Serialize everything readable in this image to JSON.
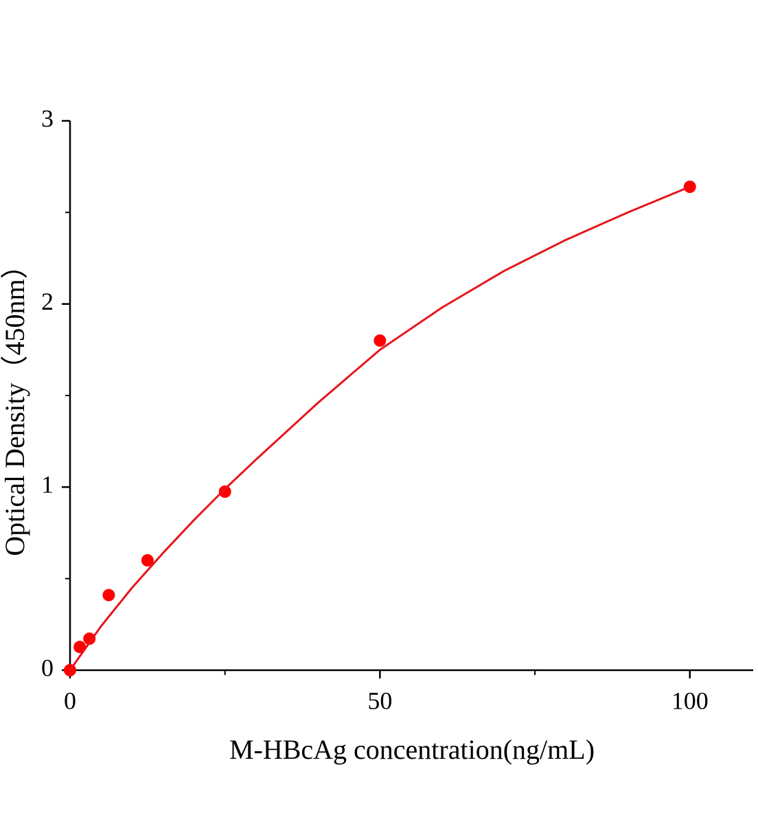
{
  "chart_data": {
    "type": "scatter",
    "xlabel": "M-HBcAg concentration(ng/mL)",
    "ylabel": "Optical Density（450nm）",
    "series": [
      {
        "type": "scatter",
        "color": "#ff0000",
        "x": [
          0,
          1.5625,
          3.125,
          6.25,
          12.5,
          25,
          50,
          100
        ],
        "values": [
          0,
          0.127,
          0.172,
          0.41,
          0.6,
          0.975,
          1.8,
          2.64
        ]
      },
      {
        "type": "line",
        "color": "#e8141c",
        "x": [
          0,
          5,
          10,
          15,
          20,
          25,
          30,
          40,
          50,
          60,
          70,
          80,
          90,
          100
        ],
        "values": [
          0,
          0.24,
          0.45,
          0.64,
          0.82,
          0.99,
          1.15,
          1.46,
          1.75,
          1.98,
          2.18,
          2.35,
          2.5,
          2.64
        ]
      }
    ],
    "xlim": [
      0,
      110
    ],
    "xticks": [
      0,
      50,
      100
    ],
    "xminorticks": [
      25,
      75
    ],
    "ylim": [
      0,
      3
    ],
    "yticks": [
      0,
      1,
      2,
      3
    ],
    "yminorticks": [
      0.5,
      1.5,
      2.5
    ]
  }
}
